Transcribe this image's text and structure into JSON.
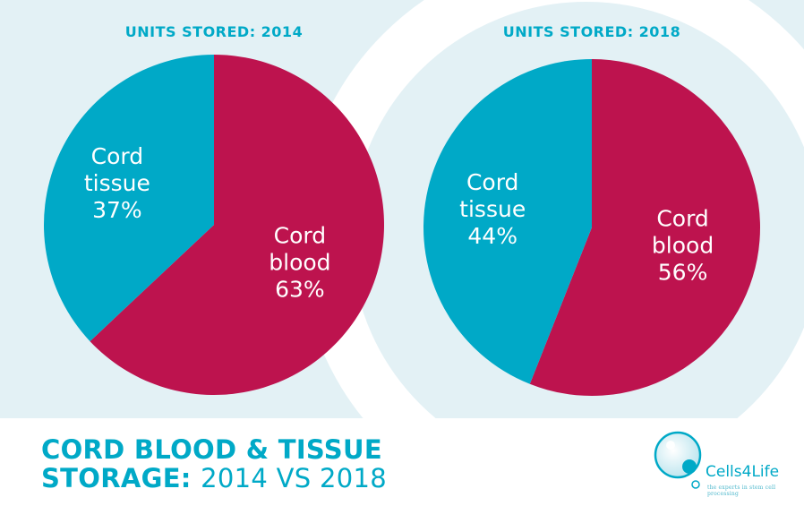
{
  "page": {
    "title_line1": "CORD BLOOD & TISSUE",
    "title_line2_bold": "STORAGE:",
    "title_line2_light": "2014 VS 2018"
  },
  "logo": {
    "name": "Cells4Life",
    "tagline": "the experts in stem cell processing"
  },
  "colors": {
    "cord_blood": "#bd134e",
    "cord_tissue": "#00a9c7",
    "background_band": "#e3f1f5",
    "accent": "#00a9c7"
  },
  "chart_data": [
    {
      "type": "pie",
      "title": "UNITS STORED: 2014",
      "slices": [
        {
          "label_lines": [
            "Cord",
            "blood",
            "63%"
          ],
          "value": 63
        },
        {
          "label_lines": [
            "Cord",
            "tissue",
            "37%"
          ],
          "value": 37
        }
      ]
    },
    {
      "type": "pie",
      "title": "UNITS STORED: 2018",
      "slices": [
        {
          "label_lines": [
            "Cord",
            "blood",
            "56%"
          ],
          "value": 56
        },
        {
          "label_lines": [
            "Cord",
            "tissue",
            "44%"
          ],
          "value": 44
        }
      ]
    }
  ]
}
